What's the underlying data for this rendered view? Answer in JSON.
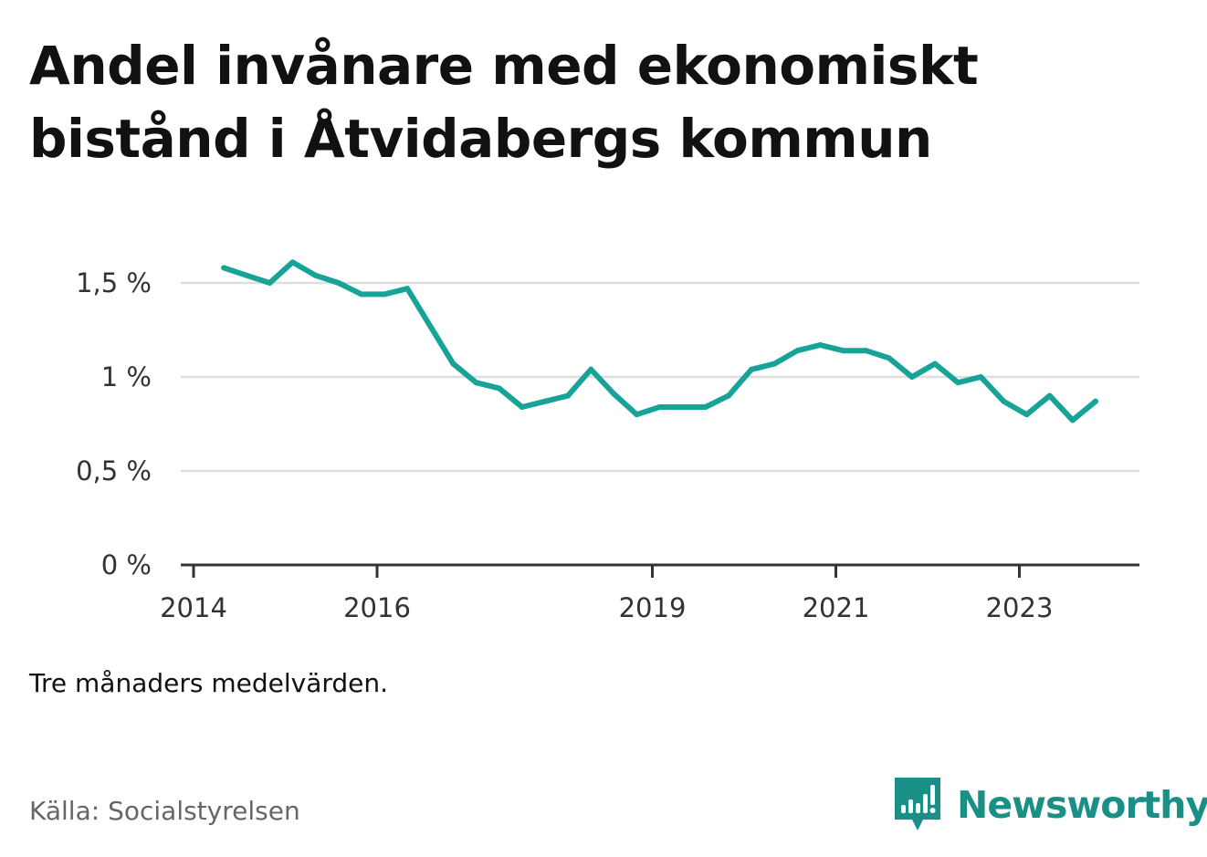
{
  "title": "Andel invånare med ekonomiskt bistånd i Åtvidabergs kommun",
  "note": "Tre månaders medelvärden.",
  "source": "Källa: Socialstyrelsen",
  "brand": {
    "name": "Newsworthy",
    "color": "#1a8f86",
    "icon": "bar-chart-speech-bubble-icon"
  },
  "chart_data": {
    "type": "line",
    "title": "Andel invånare med ekonomiskt bistånd i Åtvidabergs kommun",
    "xlabel": "",
    "ylabel": "",
    "xlim": [
      2014.0,
      2024.33
    ],
    "ylim": [
      0,
      1.68
    ],
    "y_ticks": [
      {
        "value": 0,
        "label": "0 %"
      },
      {
        "value": 0.5,
        "label": "0,5 %"
      },
      {
        "value": 1,
        "label": "1 %"
      },
      {
        "value": 1.5,
        "label": "1,5 %"
      }
    ],
    "x_ticks": [
      {
        "value": 2014,
        "label": "2014"
      },
      {
        "value": 2016,
        "label": "2016"
      },
      {
        "value": 2019,
        "label": "2019"
      },
      {
        "value": 2021,
        "label": "2021"
      },
      {
        "value": 2023,
        "label": "2023"
      }
    ],
    "grid": true,
    "line_color": "#17a398",
    "series": [
      {
        "name": "",
        "x": [
          2014.33,
          2014.58,
          2014.83,
          2015.08,
          2015.33,
          2015.58,
          2015.83,
          2016.08,
          2016.33,
          2016.58,
          2016.83,
          2017.08,
          2017.33,
          2017.58,
          2017.83,
          2018.08,
          2018.33,
          2018.58,
          2018.83,
          2019.08,
          2019.33,
          2019.58,
          2019.83,
          2020.08,
          2020.33,
          2020.58,
          2020.83,
          2021.08,
          2021.33,
          2021.58,
          2021.83,
          2022.08,
          2022.33,
          2022.58,
          2022.83,
          2023.08,
          2023.33,
          2023.58,
          2023.83
        ],
        "values": [
          1.58,
          1.54,
          1.5,
          1.61,
          1.54,
          1.5,
          1.44,
          1.44,
          1.47,
          1.27,
          1.07,
          0.97,
          0.94,
          0.84,
          0.87,
          0.9,
          1.04,
          0.91,
          0.8,
          0.84,
          0.84,
          0.84,
          0.9,
          1.04,
          1.07,
          1.14,
          1.17,
          1.14,
          1.14,
          1.1,
          1.0,
          1.07,
          0.97,
          1.0,
          0.87,
          0.8,
          0.9,
          0.77,
          0.87
        ]
      }
    ]
  }
}
